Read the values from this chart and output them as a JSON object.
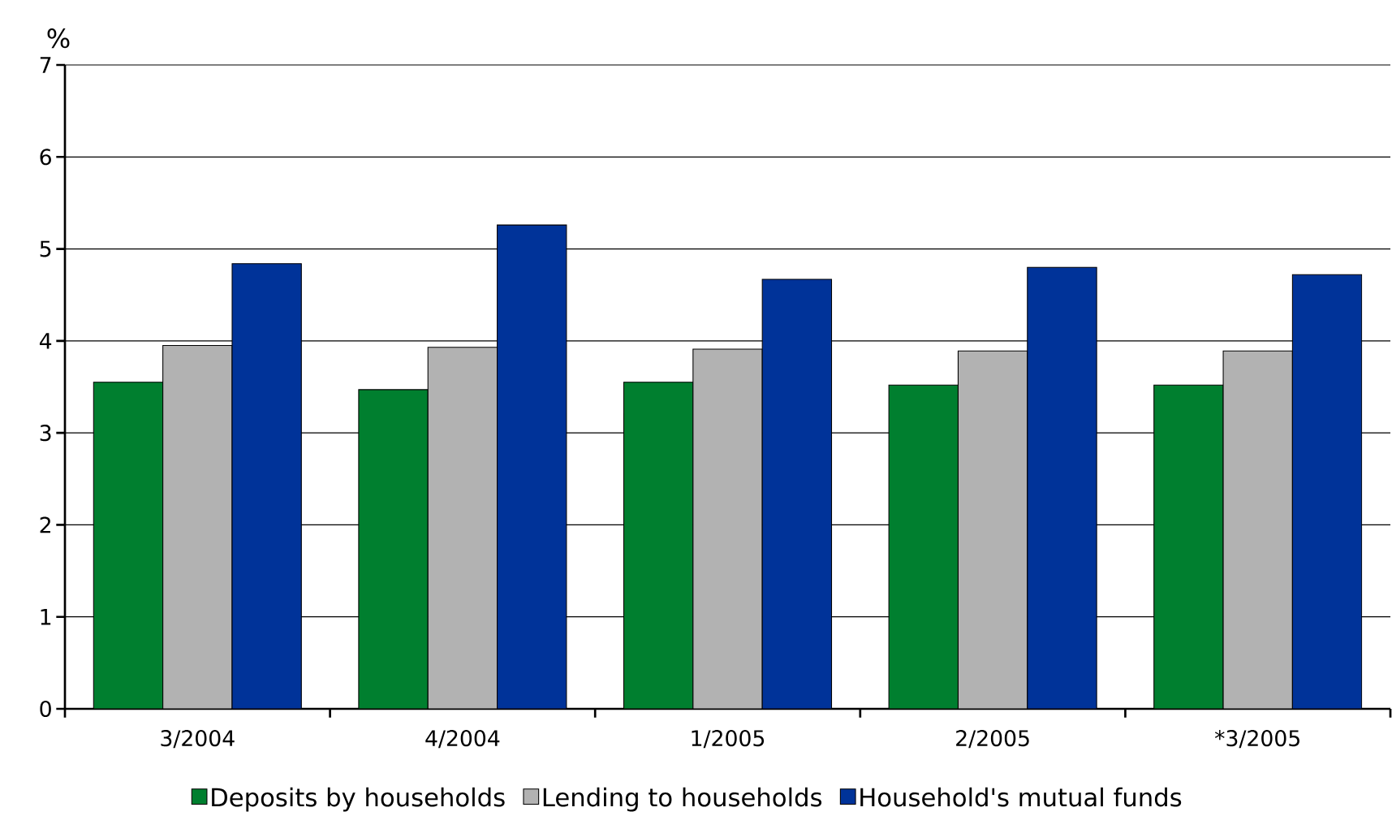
{
  "chart_data": {
    "type": "bar",
    "ylabel": "%",
    "categories": [
      "3/2004",
      "4/2004",
      "1/2005",
      "2/2005",
      "*3/2005"
    ],
    "series": [
      {
        "name": "Deposits by households",
        "color": "#007f2f",
        "values": [
          3.55,
          3.47,
          3.55,
          3.52,
          3.52
        ]
      },
      {
        "name": "Lending to households",
        "color": "#b2b2b2",
        "values": [
          3.95,
          3.93,
          3.91,
          3.89,
          3.89
        ]
      },
      {
        "name": "Household's mutual funds",
        "color": "#003399",
        "values": [
          4.84,
          5.26,
          4.67,
          4.8,
          4.72
        ]
      }
    ],
    "ylim": [
      0,
      7
    ],
    "yticks": [
      0,
      1,
      2,
      3,
      4,
      5,
      6,
      7
    ],
    "grid": "y",
    "legend": "bottom"
  }
}
